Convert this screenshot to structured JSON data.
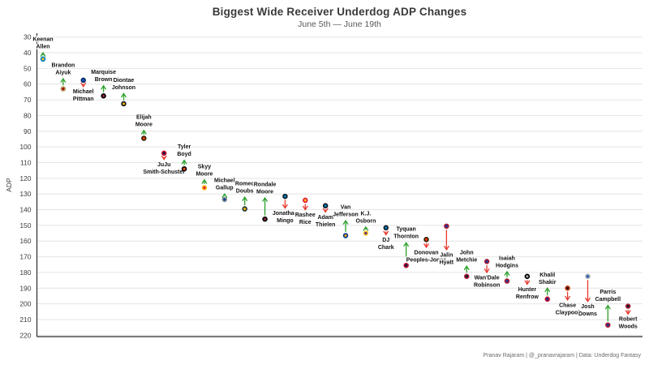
{
  "chart_data": {
    "type": "scatter",
    "title": "Biggest Wide Receiver Underdog ADP Changes",
    "subtitle": "June 5th — June 19th",
    "ylabel": "ADP",
    "footer": "Pranav Rajaram | @_pranavrajaram | Data: Underdog Fantasy",
    "y_axis": {
      "min": 30,
      "max": 220,
      "step": 10,
      "inverted": true,
      "grid": true
    },
    "x_axis": {
      "labels": false,
      "note": "players evenly spaced left-to-right by June 5th ADP"
    },
    "colors": {
      "riser_arrow": "#2ca02c",
      "faller_arrow": "#e8392f",
      "grid": "#e4e4e4",
      "axis": "#2b2b2b",
      "title": "#3a3a3a",
      "subtitle": "#595959",
      "label_text": "#111111"
    },
    "legend": "dot = June 5th ADP (team colors), arrow tip = June 19th ADP; green = rising (earlier pick), red = falling",
    "players": [
      {
        "name": "Keenan Allen",
        "label": [
          "Keenan",
          "Allen"
        ],
        "from": 44,
        "to": 40,
        "direction": "up",
        "dot": "#FFC20E",
        "ring": "#0080C6"
      },
      {
        "name": "Brandon Aiyuk",
        "label": [
          "Brandon",
          "Aiyuk"
        ],
        "from": 63,
        "to": 56.5,
        "direction": "up",
        "dot": "#AA0000",
        "ring": "#B3995D"
      },
      {
        "name": "Michael Pittman",
        "label": [
          "Michael",
          "Pittman"
        ],
        "from": 57.5,
        "to": 61.5,
        "direction": "down",
        "dot": "#2458C5",
        "ring": "#002C5F"
      },
      {
        "name": "Marquise Brown",
        "label": [
          "Marquise",
          "Brown"
        ],
        "from": 67.5,
        "to": 61,
        "direction": "up",
        "dot": "#97233F",
        "ring": "#000000"
      },
      {
        "name": "Diontae Johnson",
        "label": [
          "Diontae",
          "Johnson"
        ],
        "from": 72.5,
        "to": 66,
        "direction": "up",
        "dot": "#FFB612",
        "ring": "#101820"
      },
      {
        "name": "Elijah Moore",
        "label": [
          "Elijah",
          "Moore"
        ],
        "from": 94.5,
        "to": 89.5,
        "direction": "up",
        "dot": "#FF3C00",
        "ring": "#311D00"
      },
      {
        "name": "JuJu Smith-Schuster",
        "label": [
          "JuJu",
          "Smith-Schuster"
        ],
        "from": 104,
        "to": 108,
        "direction": "down",
        "dot": "#002244",
        "ring": "#C60C30"
      },
      {
        "name": "Tyler Boyd",
        "label": [
          "Tyler",
          "Boyd"
        ],
        "from": 114,
        "to": 108.5,
        "direction": "up",
        "dot": "#FB4F14",
        "ring": "#000000"
      },
      {
        "name": "Skyy Moore",
        "label": [
          "Skyy",
          "Moore"
        ],
        "from": 126,
        "to": 121,
        "direction": "up",
        "dot": "#E31837",
        "ring": "#FFB81C"
      },
      {
        "name": "Michael Gallup",
        "label": [
          "Michael",
          "Gallup"
        ],
        "from": 133.5,
        "to": 130,
        "direction": "up",
        "dot": "#003594",
        "ring": "#869397"
      },
      {
        "name": "Romeo Doubs",
        "label": [
          "Romeo",
          "Doubs"
        ],
        "from": 139.5,
        "to": 132,
        "direction": "up",
        "dot": "#FFB612",
        "ring": "#203731"
      },
      {
        "name": "Rondale Moore",
        "label": [
          "Rondale",
          "Moore"
        ],
        "from": 146,
        "to": 132.5,
        "direction": "up",
        "dot": "#97233F",
        "ring": "#000000"
      },
      {
        "name": "Jonathan Mingo",
        "label": [
          "Jonathan",
          "Mingo"
        ],
        "from": 131.5,
        "to": 139,
        "direction": "down",
        "dot": "#0085CA",
        "ring": "#101820"
      },
      {
        "name": "Rashee Rice",
        "label": [
          "Rashee",
          "Rice"
        ],
        "from": 134,
        "to": 140,
        "direction": "down",
        "dot": "#FFB81C",
        "ring": "#E31837"
      },
      {
        "name": "Adam Thielen",
        "label": [
          "Adam",
          "Thielen"
        ],
        "from": 137.5,
        "to": 141.5,
        "direction": "down",
        "dot": "#0085CA",
        "ring": "#101820"
      },
      {
        "name": "Van Jefferson",
        "label": [
          "Van",
          "Jefferson"
        ],
        "from": 156.5,
        "to": 147,
        "direction": "up",
        "dot": "#FFA300",
        "ring": "#003594"
      },
      {
        "name": "K.J. Osborn",
        "label": [
          "K.J.",
          "Osborn"
        ],
        "from": 155,
        "to": 151,
        "direction": "up",
        "dot": "#4F2683",
        "ring": "#FFC62F"
      },
      {
        "name": "DJ Chark",
        "label": [
          "DJ",
          "Chark"
        ],
        "from": 151.5,
        "to": 156,
        "direction": "down",
        "dot": "#0085CA",
        "ring": "#101820"
      },
      {
        "name": "Tyquan Thornton",
        "label": [
          "Tyquan",
          "Thornton"
        ],
        "from": 175.5,
        "to": 161,
        "direction": "up",
        "dot": "#002244",
        "ring": "#C60C30"
      },
      {
        "name": "Donovan Peoples-Jones",
        "label": [
          "Donovan",
          "Peoples-Jones"
        ],
        "from": 159,
        "to": 164,
        "direction": "down",
        "dot": "#FF3C00",
        "ring": "#311D00"
      },
      {
        "name": "Jalin Hyatt",
        "label": [
          "Jalin",
          "Hyatt"
        ],
        "from": 150.5,
        "to": 165.5,
        "direction": "down",
        "dot": "#1A3A9E",
        "ring": "#A71930"
      },
      {
        "name": "John Metchie",
        "label": [
          "John",
          "Metchie"
        ],
        "from": 182.5,
        "to": 176,
        "direction": "up",
        "dot": "#03202F",
        "ring": "#A71930"
      },
      {
        "name": "Wan'Dale Robinson",
        "label": [
          "Wan'Dale",
          "Robinson"
        ],
        "from": 173,
        "to": 180,
        "direction": "down",
        "dot": "#1A3A9E",
        "ring": "#A71930"
      },
      {
        "name": "Isaiah Hodgins",
        "label": [
          "Isaiah",
          "Hodgins"
        ],
        "from": 185.5,
        "to": 179.5,
        "direction": "up",
        "dot": "#1A3A9E",
        "ring": "#A71930"
      },
      {
        "name": "Hunter Renfrow",
        "label": [
          "Hunter",
          "Renfrow"
        ],
        "from": 182.5,
        "to": 187.5,
        "direction": "down",
        "dot": "#A5ACAF",
        "ring": "#000000"
      },
      {
        "name": "Khalil Shakir",
        "label": [
          "Khalil",
          "Shakir"
        ],
        "from": 197,
        "to": 190,
        "direction": "up",
        "dot": "#00338D",
        "ring": "#C60C30"
      },
      {
        "name": "Chase Claypool",
        "label": [
          "Chase",
          "Claypool"
        ],
        "from": 190,
        "to": 197.5,
        "direction": "down",
        "dot": "#0B162A",
        "ring": "#C83803"
      },
      {
        "name": "Josh Downs",
        "label": [
          "Josh",
          "Downs"
        ],
        "from": 182.5,
        "to": 198.5,
        "direction": "down",
        "dot": "#2458C5",
        "ring": "#A2AAAD"
      },
      {
        "name": "Parris Campbell",
        "label": [
          "Parris",
          "Campbell"
        ],
        "from": 213.5,
        "to": 201,
        "direction": "up",
        "dot": "#1A3A9E",
        "ring": "#A71930"
      },
      {
        "name": "Robert Woods",
        "label": [
          "Robert",
          "Woods"
        ],
        "from": 201.5,
        "to": 206.5,
        "direction": "down",
        "dot": "#03202F",
        "ring": "#A71930"
      }
    ]
  }
}
